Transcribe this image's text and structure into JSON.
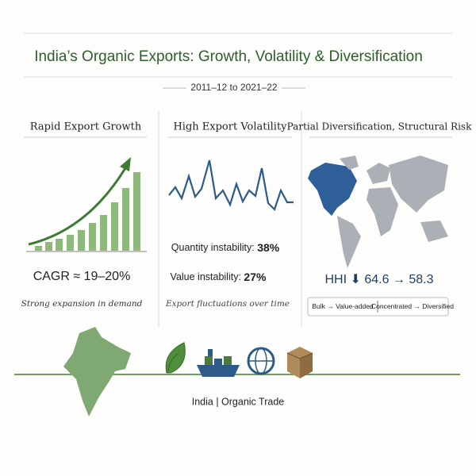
{
  "header": {
    "title": "India’s Organic Exports: Growth, Volatility & Diversification",
    "subtitle": "2011–12 to 2021–22"
  },
  "panels": [
    {
      "title": "Rapid Export Growth",
      "metric": "CAGR ≈ 19–20%",
      "caption": "Strong expansion in demand"
    },
    {
      "title": "High Export Volatility",
      "stats": [
        {
          "label": "Quantity instability:",
          "value": "38%"
        },
        {
          "label": "Value instability:",
          "value": "27%"
        }
      ],
      "caption": "Export fluctuations over time"
    },
    {
      "title": "Partial Diversification, Structural Risk",
      "metric": "HHI ⬇ 64.6 → 58.3",
      "shifts": [
        "Bulk → Value-added",
        "Concentrated → Diversified"
      ]
    }
  ],
  "footer": "India | Organic Trade"
}
